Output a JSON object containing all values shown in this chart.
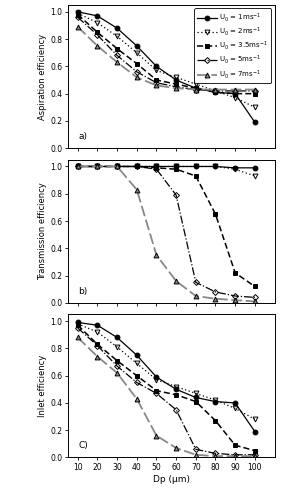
{
  "x": [
    10,
    20,
    30,
    40,
    50,
    60,
    70,
    80,
    90,
    100
  ],
  "aspiration": {
    "U1": [
      1.0,
      0.97,
      0.88,
      0.75,
      0.6,
      0.5,
      0.44,
      0.41,
      0.4,
      0.19
    ],
    "U2": [
      0.99,
      0.92,
      0.82,
      0.7,
      0.57,
      0.52,
      0.47,
      0.42,
      0.37,
      0.3
    ],
    "U35": [
      0.98,
      0.85,
      0.73,
      0.62,
      0.5,
      0.47,
      0.44,
      0.41,
      0.4,
      0.4
    ],
    "U5": [
      0.96,
      0.83,
      0.68,
      0.56,
      0.48,
      0.45,
      0.43,
      0.42,
      0.42,
      0.42
    ],
    "U7": [
      0.89,
      0.75,
      0.63,
      0.52,
      0.46,
      0.44,
      0.43,
      0.43,
      0.43,
      0.43
    ]
  },
  "transmission": {
    "U1": [
      1.0,
      1.0,
      1.0,
      1.0,
      1.0,
      1.0,
      1.0,
      1.0,
      0.99,
      0.99
    ],
    "U2": [
      1.0,
      1.0,
      1.0,
      1.0,
      1.0,
      1.0,
      1.0,
      1.0,
      0.98,
      0.93
    ],
    "U35": [
      1.0,
      1.0,
      1.0,
      1.0,
      0.99,
      0.98,
      0.93,
      0.65,
      0.22,
      0.12
    ],
    "U5": [
      1.0,
      1.0,
      1.0,
      1.0,
      0.98,
      0.79,
      0.15,
      0.08,
      0.05,
      0.04
    ],
    "U7": [
      1.0,
      1.0,
      1.0,
      0.83,
      0.35,
      0.16,
      0.05,
      0.03,
      0.02,
      0.01
    ]
  },
  "inlet": {
    "U1": [
      0.99,
      0.97,
      0.88,
      0.75,
      0.59,
      0.5,
      0.44,
      0.41,
      0.4,
      0.19
    ],
    "U2": [
      0.98,
      0.92,
      0.81,
      0.69,
      0.57,
      0.52,
      0.47,
      0.42,
      0.36,
      0.28
    ],
    "U35": [
      0.97,
      0.83,
      0.71,
      0.6,
      0.49,
      0.46,
      0.41,
      0.27,
      0.09,
      0.05
    ],
    "U5": [
      0.95,
      0.82,
      0.67,
      0.55,
      0.47,
      0.35,
      0.06,
      0.03,
      0.02,
      0.02
    ],
    "U7": [
      0.88,
      0.74,
      0.62,
      0.43,
      0.16,
      0.07,
      0.02,
      0.01,
      0.01,
      0.01
    ]
  },
  "legend_labels": [
    "U$_0$ = 1ms$^{-1}$",
    "U$_0$ = 2ms$^{-1}$",
    "U$_0$ = 3.5ms$^{-1}$",
    "U$_0$ = 5ms$^{-1}$",
    "U$_0$ = 7ms$^{-1}$"
  ],
  "xlabel": "Dp (μm)",
  "ylabels": [
    "Aspiration efficiency",
    "Transmission efficiency",
    "Inlet efficiency"
  ],
  "panel_labels": [
    "a)",
    "b)",
    "C)"
  ],
  "xlim": [
    5,
    110
  ],
  "ylim": [
    0.0,
    1.05
  ],
  "xticks": [
    10,
    20,
    30,
    40,
    50,
    60,
    70,
    80,
    90,
    100
  ],
  "yticks": [
    0.0,
    0.2,
    0.4,
    0.6,
    0.8,
    1.0
  ]
}
